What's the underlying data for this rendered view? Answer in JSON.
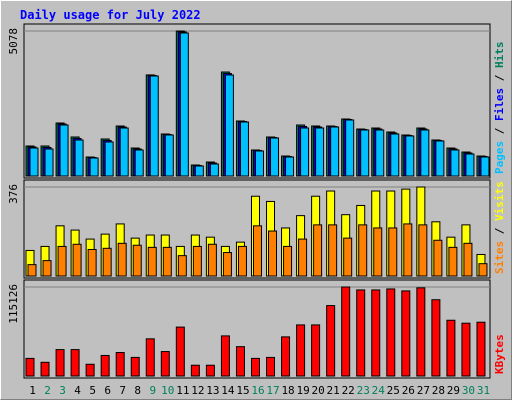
{
  "chart_data": [
    {
      "type": "bar",
      "title": "Daily usage for July 2022",
      "ylim": [
        0,
        5078
      ],
      "yticks": [
        5078
      ],
      "grid": true,
      "legend_separator": " / ",
      "series": [
        {
          "name": "Hits",
          "color": "#00805c",
          "values": [
            1051,
            1051,
            1856,
            1366,
            665,
            1296,
            1751,
            980,
            3540,
            1471,
            5078,
            385,
            490,
            3642,
            1926,
            911,
            1366,
            700,
            1786,
            1751,
            1751,
            1996,
            1646,
            1681,
            1541,
            1436,
            1681,
            1261,
            980,
            840,
            700
          ]
        },
        {
          "name": "Files",
          "color": "#0000ff",
          "values": [
            1016,
            998,
            1821,
            1314,
            648,
            1244,
            1716,
            946,
            3520,
            1454,
            5043,
            368,
            455,
            3590,
            1908,
            894,
            1349,
            683,
            1734,
            1716,
            1734,
            1979,
            1629,
            1646,
            1506,
            1419,
            1646,
            1244,
            946,
            805,
            683
          ]
        },
        {
          "name": "Pages",
          "color": "#00c0ff",
          "values": [
            980,
            945,
            1786,
            1261,
            630,
            1191,
            1681,
            911,
            3502,
            1436,
            5008,
            350,
            420,
            3537,
            1891,
            876,
            1331,
            665,
            1681,
            1681,
            1716,
            1961,
            1611,
            1611,
            1471,
            1401,
            1611,
            1226,
            911,
            770,
            665
          ]
        }
      ]
    },
    {
      "type": "bar",
      "ylim": [
        0,
        376
      ],
      "yticks": [
        376
      ],
      "grid": true,
      "legend_separator": " / ",
      "series": [
        {
          "name": "Visits",
          "color": "#ffff00",
          "values": [
            108,
            125,
            212,
            194,
            156,
            177,
            220,
            160,
            173,
            173,
            125,
            173,
            164,
            125,
            143,
            337,
            315,
            203,
            255,
            337,
            359,
            259,
            298,
            359,
            359,
            367,
            376,
            229,
            164,
            216,
            91
          ]
        },
        {
          "name": "Sites",
          "color": "#ff8000",
          "values": [
            48,
            65,
            125,
            134,
            112,
            117,
            138,
            130,
            121,
            121,
            86,
            125,
            134,
            99,
            125,
            212,
            190,
            125,
            156,
            216,
            216,
            160,
            216,
            203,
            203,
            220,
            216,
            151,
            121,
            138,
            52
          ]
        }
      ]
    },
    {
      "type": "bar",
      "ylim": [
        0,
        115126
      ],
      "yticks": [
        115126
      ],
      "grid": true,
      "categories": [
        "1",
        "2",
        "3",
        "4",
        "5",
        "6",
        "7",
        "8",
        "9",
        "10",
        "11",
        "12",
        "13",
        "14",
        "15",
        "16",
        "17",
        "18",
        "19",
        "20",
        "21",
        "22",
        "23",
        "24",
        "25",
        "26",
        "27",
        "28",
        "29",
        "30",
        "31"
      ],
      "category_colors": [
        "#000000",
        "#00805c",
        "#00805c",
        "#000000",
        "#000000",
        "#000000",
        "#000000",
        "#000000",
        "#00805c",
        "#00805c",
        "#000000",
        "#000000",
        "#000000",
        "#000000",
        "#000000",
        "#00805c",
        "#00805c",
        "#000000",
        "#000000",
        "#000000",
        "#000000",
        "#000000",
        "#00805c",
        "#00805c",
        "#000000",
        "#000000",
        "#000000",
        "#000000",
        "#000000",
        "#00805c",
        "#00805c"
      ],
      "series": [
        {
          "name": "KBytes",
          "color": "#ff0000",
          "values": [
            22772,
            17712,
            34158,
            34158,
            15182,
            26568,
            30363,
            24038,
            48075,
            31628,
            63256,
            13916,
            13916,
            51870,
            37954,
            22772,
            24038,
            50605,
            66086,
            66086,
            91090,
            115126,
            111331,
            111331,
            112596,
            110065,
            114000,
            98676,
            72111,
            68316,
            69581
          ]
        }
      ]
    }
  ]
}
